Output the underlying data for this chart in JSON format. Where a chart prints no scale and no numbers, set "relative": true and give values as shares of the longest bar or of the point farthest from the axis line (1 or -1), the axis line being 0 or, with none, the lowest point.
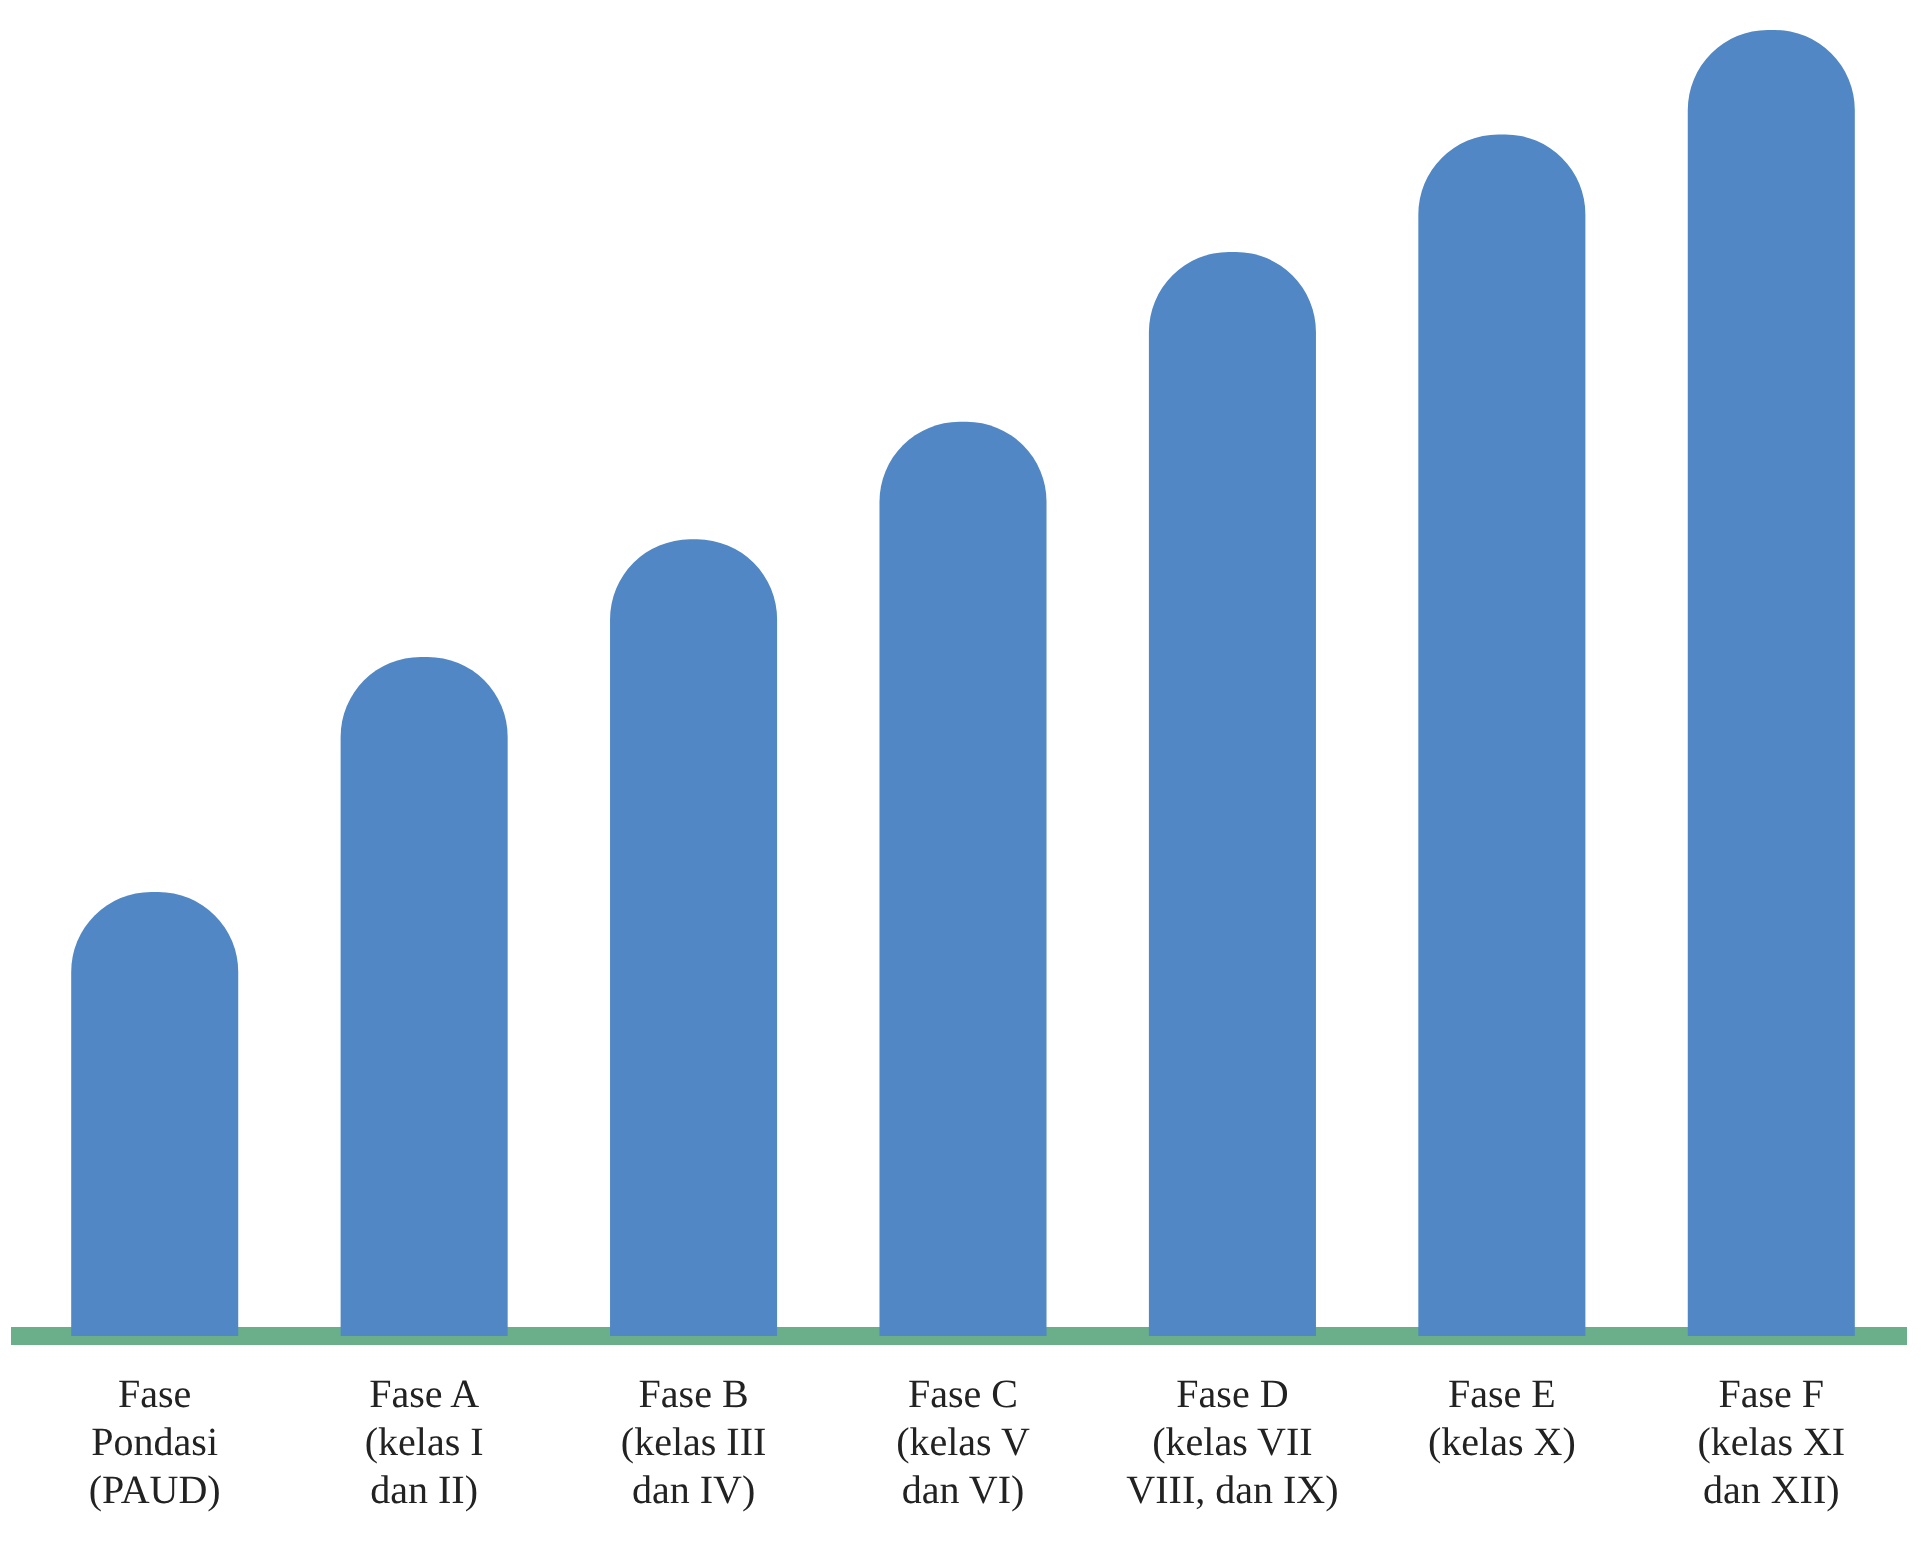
{
  "chart_data": {
    "type": "bar",
    "relative": true,
    "categories": [
      "Fase\nPondasi\n(PAUD)",
      "Fase A\n(kelas I\ndan II)",
      "Fase B\n(kelas III\ndan IV)",
      "Fase C\n(kelas V\ndan VI)",
      "Fase D\n(kelas VII\nVIII, dan IX)",
      "Fase E\n(kelas X)",
      "Fase F\n(kelas XI\ndan XII)"
    ],
    "values": [
      0.34,
      0.52,
      0.61,
      0.7,
      0.83,
      0.92,
      1
    ],
    "color": "#5087c4",
    "grid": false,
    "legend": false
  }
}
